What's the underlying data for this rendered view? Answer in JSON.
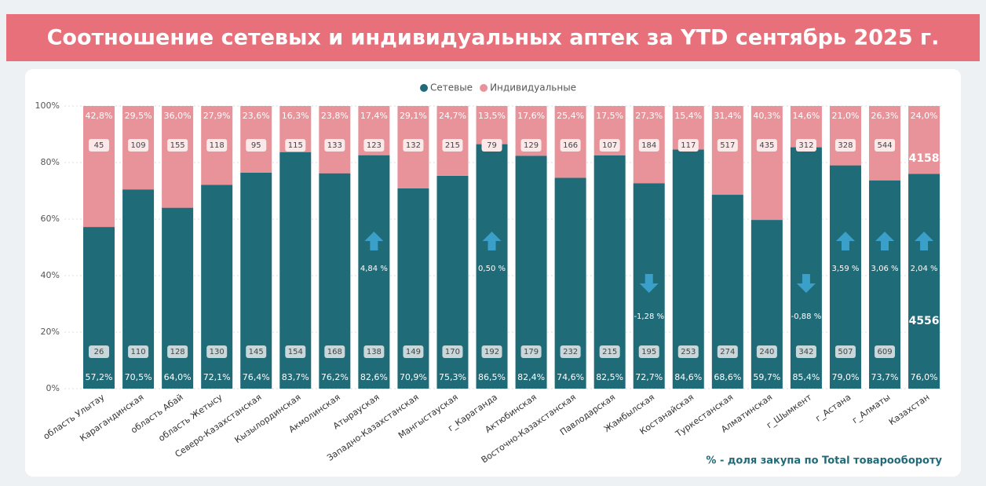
{
  "chart_data": {
    "type": "stacked_bar_100",
    "title": "Соотношение сетевых и индивидуальных аптек за YTD сентябрь 2025 г.",
    "footnote": "% - доля закупа по Total товарообороту",
    "categories": [
      "область Улытау",
      "Карагандинская",
      "область Абай",
      "область Жетысу",
      "Северо-Казахстанская",
      "Кызылординская",
      "Акмолинская",
      "Атырауская",
      "Западно-Казахстанская",
      "Мангыстауская",
      "г_Караганда",
      "Актюбинская",
      "Восточно-Казахстанская",
      "Павлодарская",
      "Жамбылская",
      "Костанайская",
      "Туркестанская",
      "Алматинская",
      "г_Шымкент",
      "г_Астана",
      "г_Алматы",
      "Казахстан"
    ],
    "series": [
      {
        "name": "Сетевые",
        "color": "#1f6b78",
        "values": [
          57.2,
          70.5,
          64.0,
          72.1,
          76.4,
          83.7,
          76.2,
          82.6,
          70.9,
          75.3,
          86.5,
          82.4,
          74.6,
          82.5,
          72.7,
          84.6,
          68.6,
          59.7,
          85.4,
          79.0,
          73.7,
          76.0
        ],
        "value_labels": [
          "57,2%",
          "70,5%",
          "64,0%",
          "72,1%",
          "76,4%",
          "83,7%",
          "76,2%",
          "82,6%",
          "70,9%",
          "75,3%",
          "86,5%",
          "82,4%",
          "74,6%",
          "82,5%",
          "72,7%",
          "84,6%",
          "68,6%",
          "59,7%",
          "85,4%",
          "79,0%",
          "73,7%",
          "76,0%"
        ],
        "counts": [
          26,
          110,
          128,
          130,
          145,
          154,
          168,
          138,
          149,
          170,
          192,
          179,
          232,
          215,
          195,
          253,
          274,
          240,
          342,
          507,
          609,
          4556
        ]
      },
      {
        "name": "Индивидуальные",
        "color": "#e8939a",
        "values": [
          42.8,
          29.5,
          36.0,
          27.9,
          23.6,
          16.3,
          23.8,
          17.4,
          29.1,
          24.7,
          13.5,
          17.6,
          25.4,
          17.5,
          27.3,
          15.4,
          31.4,
          40.3,
          14.6,
          21.0,
          26.3,
          24.0
        ],
        "value_labels": [
          "42,8%",
          "29,5%",
          "36,0%",
          "27,9%",
          "23,6%",
          "16,3%",
          "23,8%",
          "17,4%",
          "29,1%",
          "24,7%",
          "13,5%",
          "17,6%",
          "25,4%",
          "17,5%",
          "27,3%",
          "15,4%",
          "31,4%",
          "40,3%",
          "14,6%",
          "21,0%",
          "26,3%",
          "24,0%"
        ],
        "counts": [
          45,
          109,
          155,
          118,
          95,
          115,
          133,
          123,
          132,
          215,
          79,
          129,
          166,
          107,
          184,
          117,
          517,
          435,
          312,
          328,
          544,
          4158
        ]
      }
    ],
    "changes": [
      null,
      null,
      null,
      null,
      null,
      null,
      null,
      4.84,
      null,
      null,
      0.5,
      null,
      null,
      null,
      -1.28,
      null,
      null,
      null,
      -0.88,
      3.59,
      3.06,
      2.04
    ],
    "change_labels": [
      null,
      null,
      null,
      null,
      null,
      null,
      null,
      "4,84 %",
      null,
      null,
      "0,50 %",
      null,
      null,
      null,
      "-1,28 %",
      null,
      null,
      null,
      "-0,88 %",
      "3,59 %",
      "3,06 %",
      "2,04 %"
    ],
    "arrow_color": "#3a9fc9",
    "ylim": [
      0,
      100
    ],
    "yticks": [
      {
        "value": 0,
        "label": "0%"
      },
      {
        "value": 20,
        "label": "20%"
      },
      {
        "value": 40,
        "label": "40%"
      },
      {
        "value": 60,
        "label": "60%"
      },
      {
        "value": 80,
        "label": "80%"
      },
      {
        "value": 100,
        "label": "100%"
      }
    ],
    "grid": true,
    "legend": "top"
  }
}
